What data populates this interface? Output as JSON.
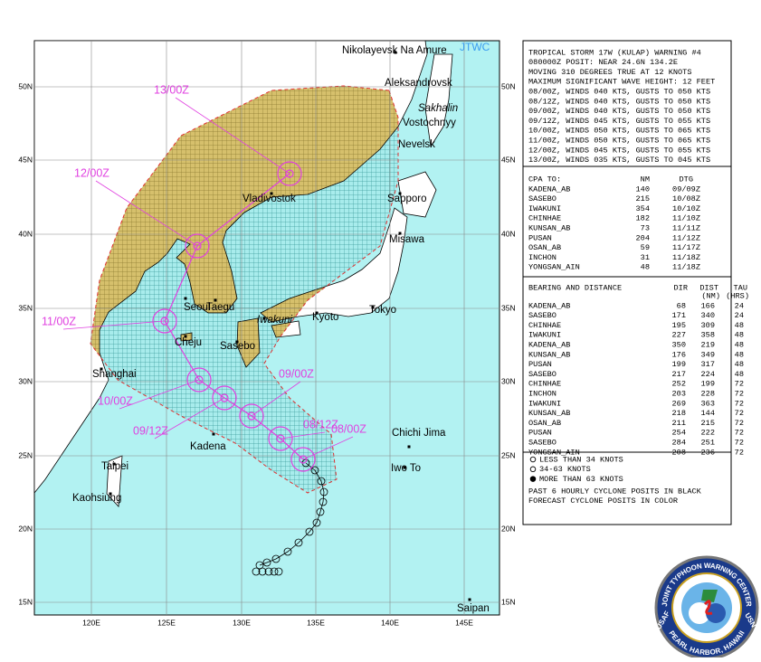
{
  "map": {
    "agency": "JTWC",
    "lat_labels": [
      "50N",
      "45N",
      "40N",
      "35N",
      "30N",
      "25N",
      "20N",
      "15N"
    ],
    "lon_labels": [
      "120E",
      "125E",
      "130E",
      "135E",
      "140E",
      "145E"
    ],
    "places": [
      "Nikolayevsk Na Amure",
      "Aleksandrovsk",
      "Sakhalin",
      "Vostochnyy",
      "Nevelsk",
      "Sapporo",
      "Misawa",
      "Vladivostok",
      "Seoul",
      "Taegu",
      "Iwakuni",
      "Kyoto",
      "Tokyo",
      "Cheju",
      "Sasebo",
      "Shanghai",
      "Kadena",
      "Chichi Jima",
      "Iwo To",
      "Taipei",
      "Kaohsiung",
      "Saipan"
    ],
    "forecast_times": [
      "13/00Z",
      "12/00Z",
      "11/00Z",
      "10/00Z",
      "09/12Z",
      "09/00Z",
      "08/12Z",
      "08/00Z"
    ]
  },
  "warning": {
    "lines": [
      "TROPICAL STORM 17W (KULAP) WARNING #4",
      "080000Z POSIT: NEAR 24.6N 134.2E",
      "MOVING 310 DEGREES TRUE AT 12 KNOTS",
      "MAXIMUM SIGNIFICANT WAVE HEIGHT: 12 FEET",
      "08/00Z, WINDS 040 KTS, GUSTS TO 050 KTS",
      "08/12Z, WINDS 040 KTS, GUSTS TO 050 KTS",
      "09/00Z, WINDS 040 KTS, GUSTS TO 050 KTS",
      "09/12Z, WINDS 045 KTS, GUSTS TO 055 KTS",
      "10/00Z, WINDS 050 KTS, GUSTS TO 065 KTS",
      "11/00Z, WINDS 050 KTS, GUSTS TO 065 KTS",
      "12/00Z, WINDS 045 KTS, GUSTS TO 055 KTS",
      "13/00Z, WINDS 035 KTS, GUSTS TO 045 KTS"
    ]
  },
  "cpa": {
    "heading": "CPA TO:",
    "columns": [
      "NM",
      "DTG"
    ],
    "rows": [
      {
        "site": "KADENA_AB",
        "nm": 140,
        "dtg": "09/09Z"
      },
      {
        "site": "SASEBO",
        "nm": 215,
        "dtg": "10/08Z"
      },
      {
        "site": "IWAKUNI",
        "nm": 354,
        "dtg": "10/10Z"
      },
      {
        "site": "CHINHAE",
        "nm": 182,
        "dtg": "11/10Z"
      },
      {
        "site": "KUNSAN_AB",
        "nm": 73,
        "dtg": "11/11Z"
      },
      {
        "site": "PUSAN",
        "nm": 204,
        "dtg": "11/12Z"
      },
      {
        "site": "OSAN_AB",
        "nm": 59,
        "dtg": "11/17Z"
      },
      {
        "site": "INCHON",
        "nm": 31,
        "dtg": "11/18Z"
      },
      {
        "site": "YONGSAN_AIN",
        "nm": 48,
        "dtg": "11/18Z"
      }
    ]
  },
  "bearing": {
    "heading": "BEARING AND DISTANCE",
    "columns": [
      "DIR",
      "DIST",
      "TAU"
    ],
    "units": [
      "(NM)",
      "(HRS)"
    ],
    "rows": [
      {
        "site": "KADENA_AB",
        "dir": 68,
        "dist": 166,
        "tau": 24
      },
      {
        "site": "SASEBO",
        "dir": 171,
        "dist": 340,
        "tau": 24
      },
      {
        "site": "CHINHAE",
        "dir": 195,
        "dist": 309,
        "tau": 48
      },
      {
        "site": "IWAKUNI",
        "dir": 227,
        "dist": 358,
        "tau": 48
      },
      {
        "site": "KADENA_AB",
        "dir": 350,
        "dist": 219,
        "tau": 48
      },
      {
        "site": "KUNSAN_AB",
        "dir": 176,
        "dist": 349,
        "tau": 48
      },
      {
        "site": "PUSAN",
        "dir": 199,
        "dist": 317,
        "tau": 48
      },
      {
        "site": "SASEBO",
        "dir": 217,
        "dist": 224,
        "tau": 48
      },
      {
        "site": "CHINHAE",
        "dir": 252,
        "dist": 199,
        "tau": 72
      },
      {
        "site": "INCHON",
        "dir": 203,
        "dist": 228,
        "tau": 72
      },
      {
        "site": "IWAKUNI",
        "dir": 269,
        "dist": 363,
        "tau": 72
      },
      {
        "site": "KUNSAN_AB",
        "dir": 218,
        "dist": 144,
        "tau": 72
      },
      {
        "site": "OSAN_AB",
        "dir": 211,
        "dist": 215,
        "tau": 72
      },
      {
        "site": "PUSAN",
        "dir": 254,
        "dist": 222,
        "tau": 72
      },
      {
        "site": "SASEBO",
        "dir": 284,
        "dist": 251,
        "tau": 72
      },
      {
        "site": "YONGSAN_AIN",
        "dir": 208,
        "dist": 236,
        "tau": 72
      }
    ]
  },
  "legend": {
    "items": [
      "LESS THAN 34 KNOTS",
      "34-63 KNOTS",
      "MORE THAN 63 KNOTS"
    ],
    "notes": [
      "PAST 6 HOURLY CYCLONE POSITS IN BLACK",
      "FORECAST CYCLONE POSITS IN COLOR"
    ]
  },
  "logo": {
    "ring_text": "JOINT TYPHOON WARNING CENTER",
    "left": "USAF",
    "right": "USN",
    "bottom": "PEARL HARBOR, HAWAII"
  }
}
